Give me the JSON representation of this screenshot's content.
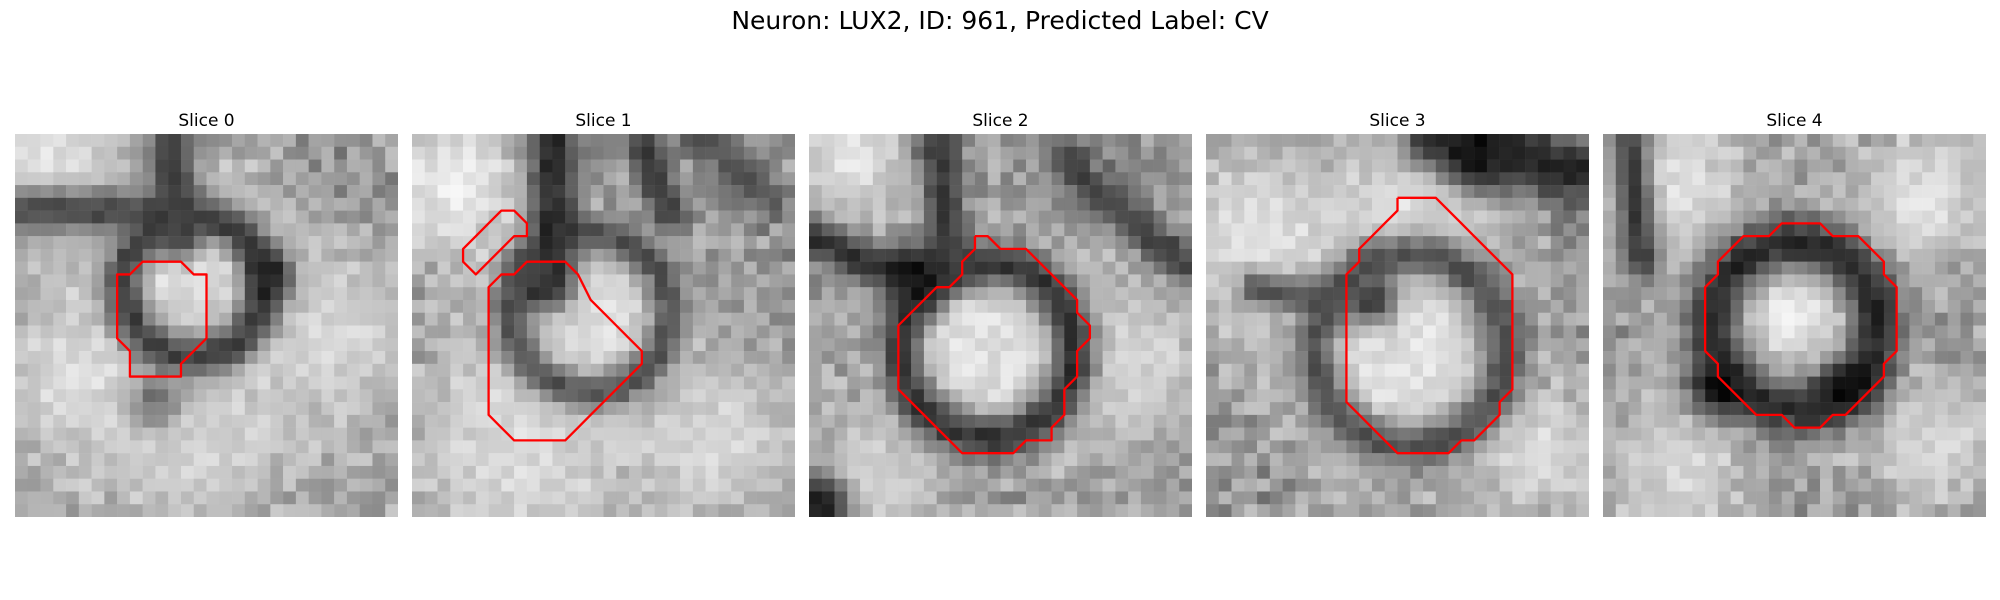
{
  "figure": {
    "title": "Neuron: LUX2, ID: 961, Predicted Label: CV"
  },
  "overlay_color": "#ff0000",
  "panels": [
    {
      "title": "Slice 0",
      "blobs": [
        {
          "cx": 12,
          "cy": 10,
          "r": 3.0,
          "v": 255
        },
        {
          "cx": 15,
          "cy": 9,
          "r": 4.5,
          "v": 230
        },
        {
          "cx": 3,
          "cy": 3,
          "r": 5.0,
          "v": 225
        },
        {
          "cx": 25,
          "cy": 16,
          "r": 5.5,
          "v": 215
        },
        {
          "cx": 5,
          "cy": 19,
          "r": 5.0,
          "v": 225
        },
        {
          "cx": 14,
          "cy": 24,
          "r": 6.0,
          "v": 215
        }
      ],
      "rings": [
        {
          "cx": 14,
          "cy": 12,
          "r": 5.5,
          "w": 1.2,
          "v": 60
        }
      ],
      "lines": [
        {
          "x1": 0,
          "y1": 6,
          "x2": 12,
          "y2": 6,
          "w": 1.3,
          "v": 70
        },
        {
          "x1": 12,
          "y1": 0,
          "x2": 13,
          "y2": 8,
          "w": 1.3,
          "v": 60
        }
      ],
      "spots": [
        {
          "cx": 20,
          "cy": 11,
          "r": 1.2,
          "v": 20
        },
        {
          "cx": 11,
          "cy": 21,
          "r": 1.5,
          "v": 110
        }
      ],
      "contours": [
        [
          [
            12,
            10
          ],
          [
            13,
            10
          ],
          [
            14,
            11
          ],
          [
            15,
            11
          ],
          [
            15,
            15
          ],
          [
            15,
            16
          ],
          [
            14,
            17
          ],
          [
            13,
            18
          ],
          [
            13,
            19
          ],
          [
            12,
            19
          ],
          [
            10,
            19
          ],
          [
            9,
            19
          ],
          [
            9,
            17
          ],
          [
            8,
            16
          ],
          [
            8,
            15
          ],
          [
            8,
            11
          ],
          [
            9,
            11
          ],
          [
            10,
            10
          ],
          [
            12,
            10
          ]
        ]
      ]
    },
    {
      "title": "Slice 1",
      "blobs": [
        {
          "cx": 13,
          "cy": 13,
          "r": 3.5,
          "v": 245
        },
        {
          "cx": 14,
          "cy": 15,
          "r": 5.0,
          "v": 220
        },
        {
          "cx": 3,
          "cy": 4,
          "r": 4.5,
          "v": 235
        },
        {
          "cx": 8,
          "cy": 25,
          "r": 7.0,
          "v": 220
        },
        {
          "cx": 24,
          "cy": 24,
          "r": 5.0,
          "v": 215
        }
      ],
      "rings": [
        {
          "cx": 14,
          "cy": 14,
          "r": 6.2,
          "w": 1.1,
          "v": 80
        }
      ],
      "lines": [
        {
          "x1": 11,
          "y1": 0,
          "x2": 11,
          "y2": 11,
          "w": 1.4,
          "v": 40
        },
        {
          "x1": 18,
          "y1": 0,
          "x2": 20,
          "y2": 6,
          "w": 1.1,
          "v": 60
        },
        {
          "x1": 22,
          "y1": 0,
          "x2": 28,
          "y2": 5,
          "w": 1.0,
          "v": 80
        }
      ],
      "spots": [
        {
          "cx": 10,
          "cy": 12,
          "r": 1.5,
          "v": 50
        }
      ],
      "contours": [
        [
          [
            10,
            10
          ],
          [
            11,
            10
          ],
          [
            12,
            10
          ],
          [
            13,
            11
          ],
          [
            14,
            13
          ],
          [
            15,
            14
          ],
          [
            16,
            15
          ],
          [
            17,
            16
          ],
          [
            18,
            17
          ],
          [
            18,
            18
          ],
          [
            17,
            19
          ],
          [
            16,
            20
          ],
          [
            15,
            21
          ],
          [
            14,
            22
          ],
          [
            13,
            23
          ],
          [
            12,
            24
          ],
          [
            10,
            24
          ],
          [
            9,
            24
          ],
          [
            8,
            24
          ],
          [
            7,
            23
          ],
          [
            6,
            22
          ],
          [
            6,
            12
          ],
          [
            7,
            11
          ],
          [
            8,
            11
          ],
          [
            9,
            10
          ],
          [
            10,
            10
          ]
        ],
        [
          [
            6,
            7
          ],
          [
            7,
            6
          ],
          [
            8,
            6
          ],
          [
            9,
            7
          ],
          [
            9,
            8
          ],
          [
            8,
            8
          ],
          [
            7,
            9
          ],
          [
            6,
            10
          ],
          [
            5,
            11
          ],
          [
            4,
            10
          ],
          [
            4,
            9
          ],
          [
            5,
            8
          ],
          [
            6,
            7
          ]
        ]
      ]
    },
    {
      "title": "Slice 2",
      "blobs": [
        {
          "cx": 13,
          "cy": 17,
          "r": 4.0,
          "v": 250
        },
        {
          "cx": 14,
          "cy": 16,
          "r": 5.5,
          "v": 225
        },
        {
          "cx": 3,
          "cy": 2,
          "r": 4.0,
          "v": 225
        },
        {
          "cx": 25,
          "cy": 18,
          "r": 5.0,
          "v": 215
        },
        {
          "cx": 5,
          "cy": 27,
          "r": 4.0,
          "v": 210
        }
      ],
      "rings": [
        {
          "cx": 14,
          "cy": 17,
          "r": 6.8,
          "w": 1.3,
          "v": 50
        }
      ],
      "lines": [
        {
          "x1": 10,
          "y1": 0,
          "x2": 11,
          "y2": 9,
          "w": 1.3,
          "v": 60
        },
        {
          "x1": 0,
          "y1": 8,
          "x2": 9,
          "y2": 12,
          "w": 1.1,
          "v": 50
        },
        {
          "x1": 20,
          "y1": 2,
          "x2": 29,
          "y2": 10,
          "w": 1.1,
          "v": 60
        }
      ],
      "spots": [
        {
          "cx": 8,
          "cy": 11,
          "r": 1.5,
          "v": 10
        },
        {
          "cx": 1,
          "cy": 29,
          "r": 1.5,
          "v": 15
        }
      ],
      "contours": [
        [
          [
            13,
            8
          ],
          [
            14,
            8
          ],
          [
            15,
            9
          ],
          [
            17,
            9
          ],
          [
            18,
            10
          ],
          [
            19,
            11
          ],
          [
            20,
            12
          ],
          [
            21,
            13
          ],
          [
            21,
            14
          ],
          [
            22,
            15
          ],
          [
            22,
            16
          ],
          [
            21,
            17
          ],
          [
            21,
            19
          ],
          [
            20,
            20
          ],
          [
            20,
            22
          ],
          [
            19,
            23
          ],
          [
            19,
            24
          ],
          [
            18,
            24
          ],
          [
            17,
            24
          ],
          [
            16,
            25
          ],
          [
            15,
            25
          ],
          [
            14,
            25
          ],
          [
            13,
            25
          ],
          [
            12,
            25
          ],
          [
            11,
            24
          ],
          [
            10,
            23
          ],
          [
            9,
            22
          ],
          [
            8,
            21
          ],
          [
            7,
            20
          ],
          [
            7,
            19
          ],
          [
            7,
            15
          ],
          [
            8,
            14
          ],
          [
            9,
            13
          ],
          [
            10,
            12
          ],
          [
            11,
            12
          ],
          [
            12,
            11
          ],
          [
            12,
            10
          ],
          [
            13,
            9
          ],
          [
            13,
            8
          ]
        ]
      ]
    },
    {
      "title": "Slice 3",
      "blobs": [
        {
          "cx": 14,
          "cy": 18,
          "r": 4.5,
          "v": 245
        },
        {
          "cx": 15,
          "cy": 17,
          "r": 6.0,
          "v": 225
        },
        {
          "cx": 4,
          "cy": 8,
          "r": 5.0,
          "v": 230
        },
        {
          "cx": 26,
          "cy": 25,
          "r": 4.0,
          "v": 220
        },
        {
          "cx": 16,
          "cy": 6,
          "r": 4.5,
          "v": 225
        }
      ],
      "rings": [
        {
          "cx": 16,
          "cy": 17,
          "r": 7.5,
          "w": 1.3,
          "v": 80
        }
      ],
      "lines": [
        {
          "x1": 18,
          "y1": 0,
          "x2": 29,
          "y2": 3,
          "w": 1.8,
          "v": 30
        },
        {
          "x1": 4,
          "y1": 12,
          "x2": 10,
          "y2": 13,
          "w": 1.0,
          "v": 80
        }
      ],
      "spots": [
        {
          "cx": 21,
          "cy": 2,
          "r": 1.5,
          "v": 10
        },
        {
          "cx": 13,
          "cy": 13,
          "r": 1.4,
          "v": 60
        }
      ],
      "contours": [
        [
          [
            15,
            5
          ],
          [
            16,
            5
          ],
          [
            18,
            5
          ],
          [
            19,
            6
          ],
          [
            20,
            7
          ],
          [
            21,
            8
          ],
          [
            22,
            9
          ],
          [
            23,
            10
          ],
          [
            24,
            11
          ],
          [
            24,
            20
          ],
          [
            23,
            21
          ],
          [
            23,
            22
          ],
          [
            22,
            23
          ],
          [
            21,
            24
          ],
          [
            20,
            24
          ],
          [
            19,
            25
          ],
          [
            18,
            25
          ],
          [
            17,
            25
          ],
          [
            16,
            25
          ],
          [
            15,
            25
          ],
          [
            14,
            24
          ],
          [
            13,
            23
          ],
          [
            12,
            22
          ],
          [
            11,
            21
          ],
          [
            11,
            20
          ],
          [
            11,
            11
          ],
          [
            12,
            10
          ],
          [
            12,
            9
          ],
          [
            13,
            8
          ],
          [
            14,
            7
          ],
          [
            15,
            6
          ],
          [
            15,
            5
          ]
        ]
      ]
    },
    {
      "title": "Slice 4",
      "blobs": [
        {
          "cx": 15,
          "cy": 14,
          "r": 3.5,
          "v": 235
        },
        {
          "cx": 5,
          "cy": 4,
          "r": 5.0,
          "v": 225
        },
        {
          "cx": 25,
          "cy": 5,
          "r": 4.0,
          "v": 225
        },
        {
          "cx": 26,
          "cy": 24,
          "r": 4.0,
          "v": 215
        },
        {
          "cx": 6,
          "cy": 26,
          "r": 4.5,
          "v": 215
        }
      ],
      "rings": [
        {
          "cx": 15,
          "cy": 15,
          "r": 6.5,
          "w": 1.5,
          "v": 40
        }
      ],
      "lines": [
        {
          "x1": 2,
          "y1": 0,
          "x2": 3,
          "y2": 10,
          "w": 1.1,
          "v": 60
        }
      ],
      "spots": [
        {
          "cx": 9,
          "cy": 20,
          "r": 1.5,
          "v": 10
        },
        {
          "cx": 19,
          "cy": 20,
          "r": 1.5,
          "v": 10
        }
      ],
      "contours": [
        [
          [
            15,
            7
          ],
          [
            17,
            7
          ],
          [
            18,
            8
          ],
          [
            20,
            8
          ],
          [
            21,
            9
          ],
          [
            22,
            10
          ],
          [
            22,
            11
          ],
          [
            23,
            12
          ],
          [
            23,
            16
          ],
          [
            23,
            17
          ],
          [
            22,
            18
          ],
          [
            22,
            19
          ],
          [
            21,
            20
          ],
          [
            20,
            21
          ],
          [
            19,
            22
          ],
          [
            18,
            22
          ],
          [
            17,
            23
          ],
          [
            16,
            23
          ],
          [
            15,
            23
          ],
          [
            14,
            22
          ],
          [
            13,
            22
          ],
          [
            12,
            22
          ],
          [
            11,
            21
          ],
          [
            10,
            20
          ],
          [
            9,
            19
          ],
          [
            9,
            18
          ],
          [
            8,
            17
          ],
          [
            8,
            16
          ],
          [
            8,
            12
          ],
          [
            9,
            11
          ],
          [
            9,
            10
          ],
          [
            10,
            9
          ],
          [
            11,
            8
          ],
          [
            13,
            8
          ],
          [
            14,
            7
          ],
          [
            15,
            7
          ]
        ]
      ]
    }
  ]
}
